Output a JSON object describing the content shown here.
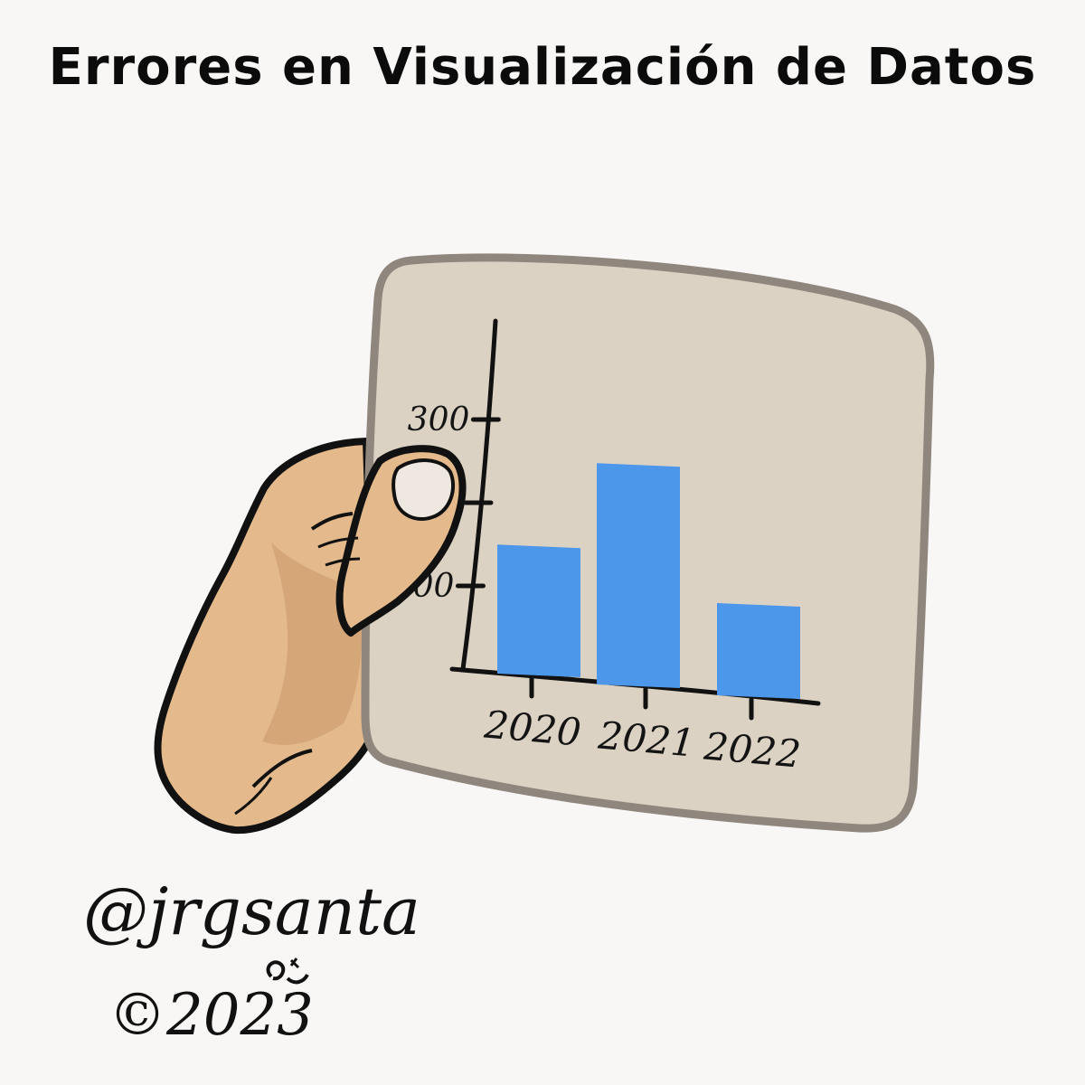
{
  "title": "Errores en Visualización de Datos",
  "chart_data": {
    "type": "bar",
    "categories": [
      "2020",
      "2021",
      "2022"
    ],
    "values": [
      140,
      240,
      100
    ],
    "yticks": [
      {
        "value": 300,
        "label": "300"
      },
      {
        "value": 200,
        "label": ""
      },
      {
        "value": 100,
        "label": "100"
      }
    ],
    "bar_color": "#4c97ea"
  },
  "credit": {
    "handle": "@jrgsanta",
    "copyright": "©2023"
  },
  "colors": {
    "card": "#dcd2c3",
    "card_border": "#8f877e",
    "skin": "#e4ba8c",
    "skin_shadow": "#c99567",
    "outline": "#111111"
  }
}
